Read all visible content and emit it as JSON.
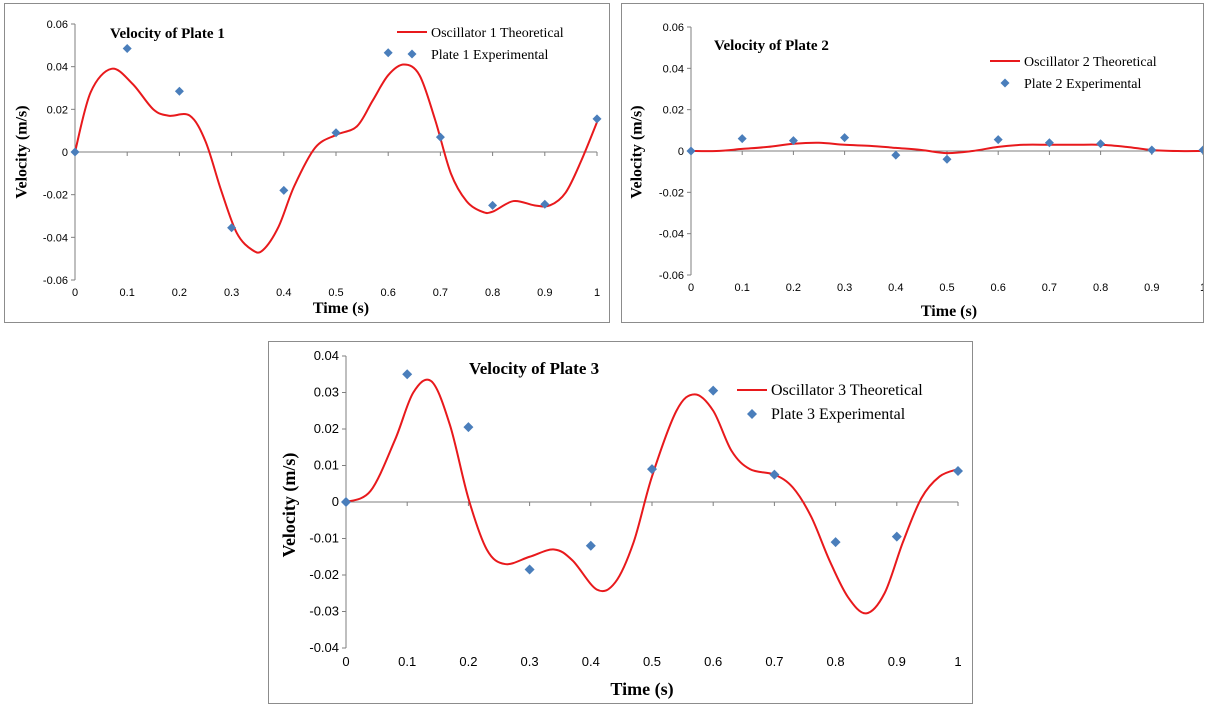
{
  "chart_data": [
    {
      "type": "line",
      "title": "Velocity of  Plate  1",
      "xlabel": "Time (s)",
      "ylabel": "Velocity (m/s)",
      "xlim": [
        0,
        1
      ],
      "ylim": [
        -0.06,
        0.06
      ],
      "x_ticks": [
        "0",
        "0.1",
        "0.2",
        "0.3",
        "0.4",
        "0.5",
        "0.6",
        "0.7",
        "0.8",
        "0.9",
        "1"
      ],
      "y_ticks": [
        "0.06",
        "0.04",
        "0.02",
        "0",
        "-0.02",
        "-0.04",
        "-0.06"
      ],
      "legend_position": "top-right",
      "series": [
        {
          "name": "Oscillator 1 Theoretical",
          "kind": "line",
          "color": "#e8191c",
          "x": [
            0,
            0.03,
            0.07,
            0.11,
            0.15,
            0.18,
            0.22,
            0.25,
            0.28,
            0.31,
            0.34,
            0.36,
            0.39,
            0.42,
            0.46,
            0.5,
            0.54,
            0.57,
            0.6,
            0.63,
            0.66,
            0.69,
            0.72,
            0.75,
            0.78,
            0.8,
            0.84,
            0.88,
            0.91,
            0.94,
            0.97,
            1.0
          ],
          "y": [
            0,
            0.028,
            0.039,
            0.032,
            0.02,
            0.017,
            0.017,
            0.005,
            -0.018,
            -0.038,
            -0.046,
            -0.046,
            -0.035,
            -0.016,
            0.002,
            0.008,
            0.012,
            0.024,
            0.036,
            0.041,
            0.036,
            0.015,
            -0.01,
            -0.023,
            -0.028,
            -0.028,
            -0.023,
            -0.025,
            -0.025,
            -0.019,
            -0.004,
            0.014
          ]
        },
        {
          "name": "Plate 1 Experimental",
          "kind": "scatter",
          "color": "#4a7ebb",
          "x": [
            0,
            0.1,
            0.2,
            0.3,
            0.4,
            0.5,
            0.6,
            0.7,
            0.8,
            0.9,
            1.0
          ],
          "y": [
            0,
            0.0485,
            0.0285,
            -0.0355,
            -0.018,
            0.009,
            0.0465,
            0.007,
            -0.025,
            -0.0245,
            0.0155
          ]
        }
      ]
    },
    {
      "type": "line",
      "title": "Velocity of Plate  2",
      "xlabel": "Time  (s)",
      "ylabel": "Velocity (m/s)",
      "xlim": [
        0,
        1
      ],
      "ylim": [
        -0.06,
        0.06
      ],
      "x_ticks": [
        "0",
        "0.1",
        "0.2",
        "0.3",
        "0.4",
        "0.5",
        "0.6",
        "0.7",
        "0.8",
        "0.9",
        "1"
      ],
      "y_ticks": [
        "0.06",
        "0.04",
        "0.02",
        "0",
        "-0.02",
        "-0.04",
        "-0.06"
      ],
      "legend_position": "top-right",
      "series": [
        {
          "name": "Oscillator 2 Theoretical",
          "kind": "line",
          "color": "#e8191c",
          "x": [
            0,
            0.05,
            0.1,
            0.15,
            0.2,
            0.25,
            0.3,
            0.35,
            0.4,
            0.45,
            0.5,
            0.55,
            0.6,
            0.65,
            0.7,
            0.75,
            0.8,
            0.85,
            0.9,
            0.95,
            1.0
          ],
          "y": [
            0,
            0,
            0.001,
            0.002,
            0.0035,
            0.004,
            0.003,
            0.0025,
            0.0015,
            0.0005,
            -0.001,
            0,
            0.002,
            0.003,
            0.003,
            0.003,
            0.003,
            0.002,
            0.0005,
            0,
            0
          ]
        },
        {
          "name": "Plate 2 Experimental",
          "kind": "scatter",
          "color": "#4a7ebb",
          "x": [
            0,
            0.1,
            0.2,
            0.3,
            0.4,
            0.5,
            0.6,
            0.7,
            0.8,
            0.9,
            1.0
          ],
          "y": [
            0,
            0.006,
            0.005,
            0.0065,
            -0.002,
            -0.004,
            0.0055,
            0.004,
            0.0035,
            0.0005,
            0.0005
          ]
        }
      ]
    },
    {
      "type": "line",
      "title": "Velocity of Plate  3",
      "xlabel": "Time (s)",
      "ylabel": "Velocity  (m/s)",
      "xlim": [
        0,
        1
      ],
      "ylim": [
        -0.04,
        0.04
      ],
      "x_ticks": [
        "0",
        "0.1",
        "0.2",
        "0.3",
        "0.4",
        "0.5",
        "0.6",
        "0.7",
        "0.8",
        "0.9",
        "1"
      ],
      "y_ticks": [
        "0.04",
        "0.03",
        "0.02",
        "0.01",
        "0",
        "-0.01",
        "-0.02",
        "-0.03",
        "-0.04"
      ],
      "legend_position": "top-right",
      "series": [
        {
          "name": "Oscillator 3 Theoretical",
          "kind": "line",
          "color": "#e8191c",
          "x": [
            0,
            0.04,
            0.08,
            0.11,
            0.14,
            0.17,
            0.2,
            0.23,
            0.26,
            0.3,
            0.34,
            0.37,
            0.41,
            0.44,
            0.47,
            0.5,
            0.54,
            0.57,
            0.6,
            0.63,
            0.66,
            0.7,
            0.73,
            0.76,
            0.79,
            0.82,
            0.85,
            0.88,
            0.91,
            0.94,
            0.97,
            1.0
          ],
          "y": [
            0,
            0.003,
            0.017,
            0.03,
            0.033,
            0.021,
            0.001,
            -0.013,
            -0.017,
            -0.015,
            -0.013,
            -0.016,
            -0.024,
            -0.022,
            -0.011,
            0.007,
            0.025,
            0.0295,
            0.025,
            0.014,
            0.009,
            0.0075,
            0.004,
            -0.004,
            -0.016,
            -0.026,
            -0.0305,
            -0.025,
            -0.011,
            0.001,
            0.007,
            0.009
          ]
        },
        {
          "name": "Plate 3 Experimental",
          "kind": "scatter",
          "color": "#4a7ebb",
          "x": [
            0,
            0.1,
            0.2,
            0.3,
            0.4,
            0.5,
            0.6,
            0.7,
            0.8,
            0.9,
            1.0
          ],
          "y": [
            0,
            0.035,
            0.0205,
            -0.0185,
            -0.012,
            0.009,
            0.0305,
            0.0075,
            -0.011,
            -0.0095,
            0.0085
          ]
        }
      ]
    }
  ]
}
